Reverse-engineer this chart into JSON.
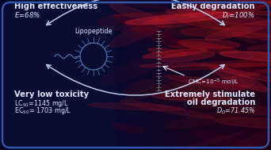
{
  "bg_dark": "#080828",
  "text_color": "#dde8ff",
  "arrow_color": "#b8ccee",
  "figsize": [
    3.42,
    1.89
  ],
  "dpi": 100,
  "top_left_title": "High effectiveness",
  "top_left_sub": "$E$=68%",
  "top_right_title": "Easily degradation",
  "top_right_sub": "$D_i$=100%",
  "bot_left_title": "Very low toxicity",
  "bot_left_sub1": "LC$_{50}$=1145 mg/L",
  "bot_left_sub2": "EC$_{50}$= 1703 mg/L",
  "bot_right_title1": "Extremely stimulate",
  "bot_right_title2": "oil degradation",
  "bot_right_sub": "$D_O$=71.45%",
  "center_label": "Lipopeptide",
  "cmc_label": "CMC=10$^{-5}$ mol/L"
}
